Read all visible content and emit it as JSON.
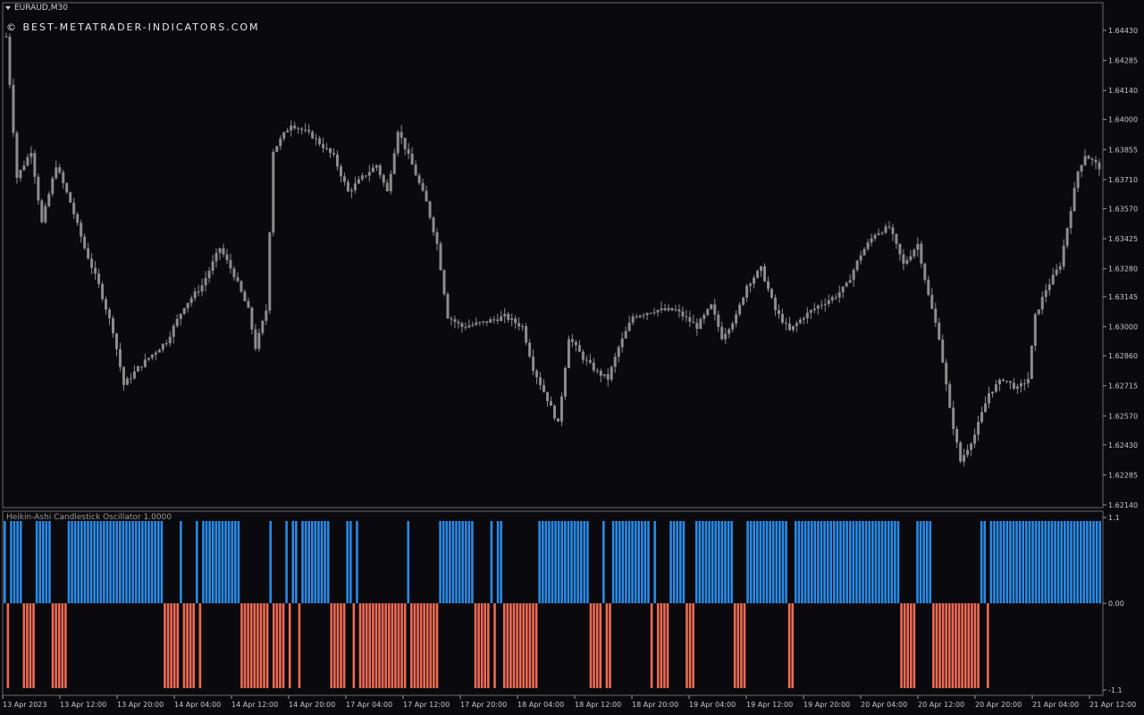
{
  "header": {
    "symbol": "EURAUD,M30",
    "watermark": "© BEST-METATRADER-INDICATORS.COM"
  },
  "indicator": {
    "title": "Heikin-Ashi Candlestick Oscillator 1.0000"
  },
  "colors": {
    "background": "#0a0a0e",
    "candle": "#8c8c8c",
    "positive": "#2a8ae6",
    "negative": "#ef6a54",
    "border": "#6a6a6a"
  },
  "chart_data": [
    {
      "type": "candlestick",
      "title": "",
      "ylim": [
        1.6214,
        1.645
      ],
      "y_ticks": [
        "1.64430",
        "1.64285",
        "1.64140",
        "1.64000",
        "1.63855",
        "1.63710",
        "1.63570",
        "1.63425",
        "1.63280",
        "1.63145",
        "1.63000",
        "1.62860",
        "1.62715",
        "1.62570",
        "1.62430",
        "1.62285",
        "1.62140"
      ],
      "x_ticks": [
        "13 Apr 2023",
        "13 Apr 12:00",
        "13 Apr 20:00",
        "14 Apr 04:00",
        "14 Apr 12:00",
        "14 Apr 20:00",
        "17 Apr 04:00",
        "17 Apr 12:00",
        "17 Apr 20:00",
        "18 Apr 04:00",
        "18 Apr 12:00",
        "18 Apr 20:00",
        "19 Apr 04:00",
        "19 Apr 12:00",
        "19 Apr 20:00",
        "20 Apr 04:00",
        "20 Apr 12:00",
        "20 Apr 20:00",
        "21 Apr 04:00",
        "21 Apr 12:00"
      ],
      "close_path": [
        [
          0,
          1.644
        ],
        [
          3,
          1.6372
        ],
        [
          7,
          1.6385
        ],
        [
          10,
          1.635
        ],
        [
          14,
          1.6378
        ],
        [
          18,
          1.636
        ],
        [
          22,
          1.6338
        ],
        [
          26,
          1.632
        ],
        [
          30,
          1.6298
        ],
        [
          33,
          1.6272
        ],
        [
          37,
          1.628
        ],
        [
          40,
          1.6285
        ],
        [
          45,
          1.6293
        ],
        [
          50,
          1.631
        ],
        [
          55,
          1.632
        ],
        [
          60,
          1.6338
        ],
        [
          64,
          1.6325
        ],
        [
          68,
          1.6308
        ],
        [
          70,
          1.629
        ],
        [
          73,
          1.6308
        ],
        [
          75,
          1.6385
        ],
        [
          80,
          1.6398
        ],
        [
          86,
          1.6392
        ],
        [
          92,
          1.6382
        ],
        [
          96,
          1.6365
        ],
        [
          100,
          1.6372
        ],
        [
          104,
          1.6378
        ],
        [
          107,
          1.6365
        ],
        [
          110,
          1.6395
        ],
        [
          114,
          1.6378
        ],
        [
          118,
          1.636
        ],
        [
          121,
          1.634
        ],
        [
          124,
          1.6305
        ],
        [
          128,
          1.63
        ],
        [
          134,
          1.6302
        ],
        [
          140,
          1.6305
        ],
        [
          145,
          1.63
        ],
        [
          148,
          1.628
        ],
        [
          152,
          1.6265
        ],
        [
          155,
          1.6253
        ],
        [
          158,
          1.6295
        ],
        [
          162,
          1.6285
        ],
        [
          166,
          1.6278
        ],
        [
          169,
          1.6275
        ],
        [
          172,
          1.629
        ],
        [
          176,
          1.6305
        ],
        [
          182,
          1.6308
        ],
        [
          188,
          1.6308
        ],
        [
          194,
          1.63
        ],
        [
          198,
          1.631
        ],
        [
          201,
          1.6295
        ],
        [
          205,
          1.6305
        ],
        [
          208,
          1.632
        ],
        [
          212,
          1.6328
        ],
        [
          216,
          1.6308
        ],
        [
          220,
          1.6298
        ],
        [
          224,
          1.6305
        ],
        [
          228,
          1.631
        ],
        [
          233,
          1.6315
        ],
        [
          236,
          1.632
        ],
        [
          240,
          1.6335
        ],
        [
          244,
          1.6345
        ],
        [
          248,
          1.6348
        ],
        [
          252,
          1.633
        ],
        [
          256,
          1.634
        ],
        [
          259,
          1.6315
        ],
        [
          262,
          1.6295
        ],
        [
          265,
          1.626
        ],
        [
          268,
          1.6235
        ],
        [
          272,
          1.6248
        ],
        [
          276,
          1.6268
        ],
        [
          280,
          1.6275
        ],
        [
          284,
          1.627
        ],
        [
          287,
          1.6275
        ],
        [
          289,
          1.6305
        ],
        [
          292,
          1.6318
        ],
        [
          296,
          1.633
        ],
        [
          298,
          1.6348
        ],
        [
          301,
          1.6375
        ],
        [
          303,
          1.6383
        ],
        [
          305,
          1.638
        ],
        [
          307,
          1.6377
        ]
      ],
      "oscillator": {
        "ylim": [
          -1.1,
          1.1
        ],
        "y_ticks": [
          "1.1",
          "0.00",
          "-1.1"
        ],
        "values": "+-++++----+++++-----++++++++++++++++++++++++++++++-----+----+-++++++++++++---------+----+-++-+++++++++-----++-+---------------+---------+++++++++++-----+-++-----------++++++++++++++++----+--++++++++++++-+----+++++---++++++++++++----+++++++++++++--+++++++++++++++++++++++++++++++++-----+++++---------------++-+++++++++++++++++++++++++++++++++++"
      }
    }
  ]
}
